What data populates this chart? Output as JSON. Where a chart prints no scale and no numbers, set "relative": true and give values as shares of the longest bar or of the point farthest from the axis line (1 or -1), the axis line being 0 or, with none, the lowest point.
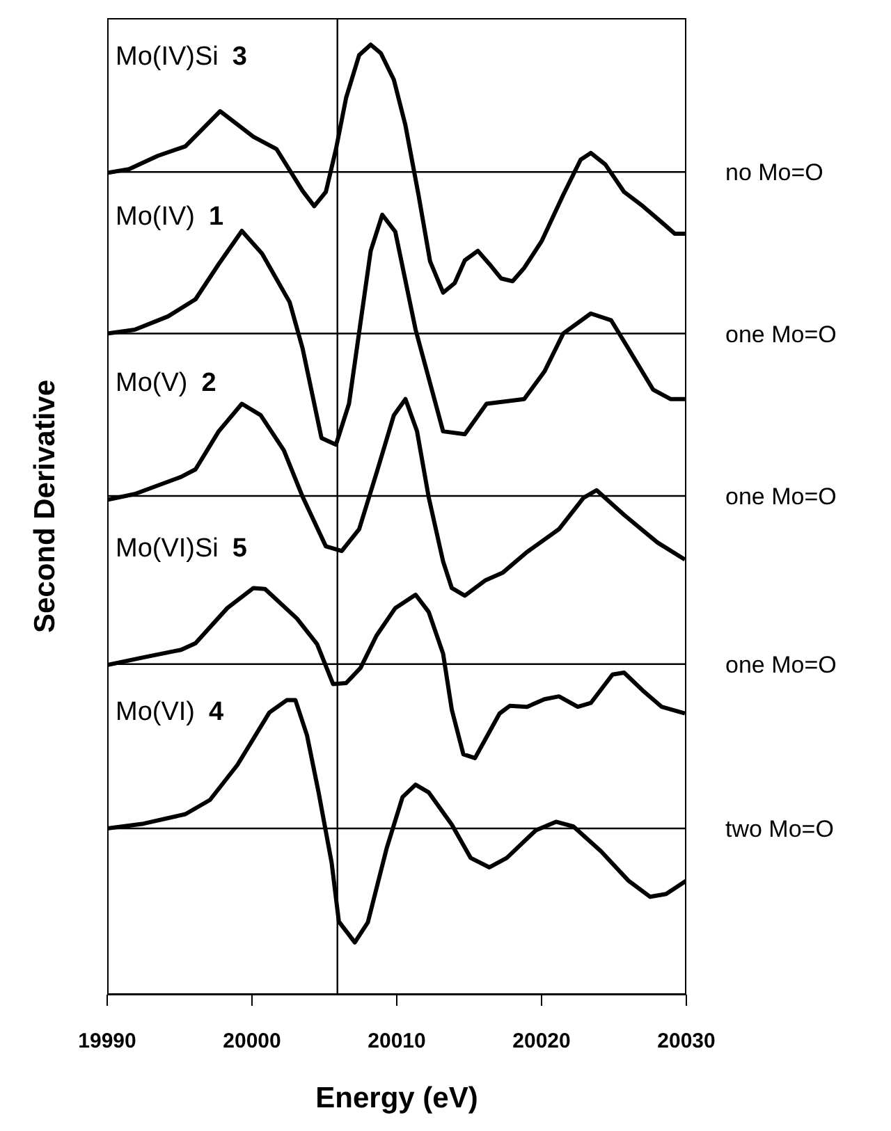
{
  "chart_data": {
    "type": "line",
    "xlabel": "Energy (eV)",
    "ylabel": "Second Derivative",
    "xlim": [
      19990,
      20030
    ],
    "xticks": [
      19990,
      20000,
      20010,
      20020,
      20030
    ],
    "relative": true,
    "marker": "none",
    "line_style": "solid",
    "series": [
      {
        "name": "Mo(IV)Si 3",
        "color": "#000000",
        "x": [
          19990,
          19991.5,
          19993.5,
          19995.4,
          19997.8,
          20000.1,
          20001.7,
          20003.5,
          20004.3,
          20005.1,
          20005.8,
          20006.5,
          20007.4,
          20008.2,
          20008.9,
          20009.8,
          20010.6,
          20011.5,
          20012.3,
          20013.2,
          20014,
          20014.7,
          20015.6,
          20016.4,
          20017.2,
          20018,
          20018.8,
          20020,
          20021.5,
          20022.7,
          20023.4,
          20024.4,
          20025.7,
          20027,
          20028.3,
          20029.2,
          20029.9
        ],
        "values": [
          0.865,
          0.869,
          0.883,
          0.893,
          0.93,
          0.903,
          0.89,
          0.846,
          0.83,
          0.845,
          0.89,
          0.944,
          0.989,
          1,
          0.991,
          0.963,
          0.915,
          0.842,
          0.772,
          0.739,
          0.749,
          0.773,
          0.783,
          0.769,
          0.754,
          0.751,
          0.765,
          0.793,
          0.842,
          0.879,
          0.886,
          0.874,
          0.845,
          0.83,
          0.813,
          0.801,
          0.801
        ]
      },
      {
        "name": "Mo(IV) 1",
        "color": "#000000",
        "x": [
          19990,
          19991.9,
          19994.2,
          19996.1,
          19997.7,
          19999.3,
          20000.7,
          20002.6,
          20003.5,
          20004.8,
          20005.8,
          20006.7,
          20008.2,
          20009,
          20009.9,
          20011.3,
          20013.2,
          20014.7,
          20016.2,
          20018.8,
          20020.2,
          20021.5,
          20023.4,
          20024.8,
          20026,
          20027.7,
          20028.9,
          20029.9
        ],
        "values": [
          0.696,
          0.7,
          0.714,
          0.732,
          0.769,
          0.804,
          0.78,
          0.729,
          0.68,
          0.586,
          0.579,
          0.622,
          0.783,
          0.821,
          0.803,
          0.7,
          0.593,
          0.59,
          0.622,
          0.627,
          0.656,
          0.696,
          0.717,
          0.71,
          0.68,
          0.637,
          0.627,
          0.627
        ]
      },
      {
        "name": "Mo(V) 2",
        "color": "#000000",
        "x": [
          19990,
          19991.9,
          19995.1,
          19996.1,
          19997.7,
          19999.3,
          20000.6,
          20002.2,
          20003.5,
          20005.1,
          20006.2,
          20007.4,
          20008.6,
          20009.8,
          20010.6,
          20011.4,
          20012.2,
          20013.2,
          20013.8,
          20014.7,
          20016.1,
          20017.3,
          20019,
          20021.2,
          20022.9,
          20023.8,
          20025.7,
          20028,
          20029.9
        ],
        "values": [
          0.521,
          0.527,
          0.545,
          0.553,
          0.593,
          0.622,
          0.61,
          0.573,
          0.524,
          0.472,
          0.467,
          0.49,
          0.549,
          0.61,
          0.627,
          0.593,
          0.524,
          0.456,
          0.428,
          0.42,
          0.436,
          0.444,
          0.466,
          0.49,
          0.523,
          0.531,
          0.505,
          0.476,
          0.458
        ]
      },
      {
        "name": "Mo(VI)Si 5",
        "color": "#000000",
        "x": [
          19990,
          19992.5,
          19995.1,
          19996.1,
          19998.3,
          20000.1,
          20000.9,
          20003.1,
          20004.5,
          20005.6,
          20006.5,
          20007.5,
          20008.6,
          20009.9,
          20011.3,
          20012.2,
          20013.2,
          20013.8,
          20014.6,
          20015.4,
          20017.1,
          20017.8,
          20019,
          20020.2,
          20021.2,
          20022.5,
          20023.4,
          20024.9,
          20025.7,
          20027,
          20028.3,
          20029.9
        ],
        "values": [
          0.347,
          0.355,
          0.363,
          0.37,
          0.407,
          0.428,
          0.427,
          0.396,
          0.369,
          0.327,
          0.328,
          0.344,
          0.378,
          0.407,
          0.421,
          0.403,
          0.359,
          0.3,
          0.253,
          0.249,
          0.296,
          0.304,
          0.303,
          0.311,
          0.314,
          0.303,
          0.307,
          0.337,
          0.339,
          0.32,
          0.303,
          0.296
        ]
      },
      {
        "name": "Mo(VI) 4",
        "color": "#000000",
        "x": [
          19990,
          19992.5,
          19995.4,
          19997.1,
          19999,
          20001.2,
          20002.4,
          20003,
          20003.8,
          20004.6,
          20005.5,
          20006,
          20007.1,
          20008,
          20009.3,
          20010.4,
          20011.3,
          20012.2,
          20013.8,
          20015.1,
          20016.4,
          20017.6,
          20019.6,
          20021,
          20022.2,
          20024.1,
          20026,
          20027.5,
          20028.6,
          20030
        ],
        "values": [
          0.175,
          0.18,
          0.19,
          0.205,
          0.242,
          0.297,
          0.31,
          0.31,
          0.273,
          0.213,
          0.139,
          0.077,
          0.055,
          0.076,
          0.154,
          0.208,
          0.221,
          0.213,
          0.179,
          0.144,
          0.134,
          0.144,
          0.173,
          0.182,
          0.177,
          0.151,
          0.12,
          0.103,
          0.106,
          0.12
        ]
      }
    ],
    "ref_lines": [
      {
        "axis": "y",
        "value": 0.866,
        "label": "no Mo=O"
      },
      {
        "axis": "y",
        "value": 0.696,
        "label": "one Mo=O"
      },
      {
        "axis": "y",
        "value": 0.525,
        "label": "one Mo=O"
      },
      {
        "axis": "y",
        "value": 0.348,
        "label": "one Mo=O"
      },
      {
        "axis": "y",
        "value": 0.175,
        "label": "two Mo=O"
      },
      {
        "axis": "x",
        "value": 20005.9
      }
    ]
  }
}
